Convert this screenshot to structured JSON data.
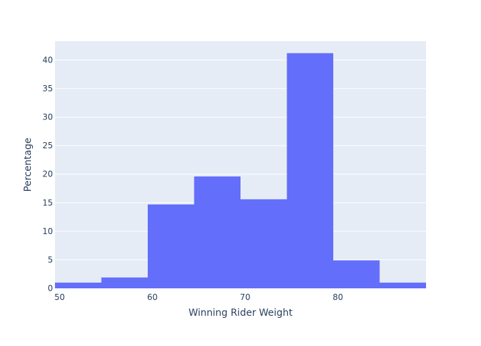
{
  "chart_data": {
    "type": "bar",
    "subtype": "histogram",
    "title": "",
    "xlabel": "Winning Rider Weight",
    "ylabel": "Percentage",
    "bin_edges": [
      49.5,
      54.5,
      59.5,
      64.5,
      69.5,
      74.5,
      79.5,
      84.5,
      89.5
    ],
    "values": [
      1.0,
      1.9,
      14.7,
      19.6,
      15.6,
      41.2,
      4.9,
      1.0
    ],
    "xlim": [
      49.5,
      89.5
    ],
    "ylim": [
      0,
      43.3
    ],
    "xticks": [
      50,
      60,
      70,
      80
    ],
    "yticks": [
      0,
      5,
      10,
      15,
      20,
      25,
      30,
      35,
      40
    ],
    "grid": "horizontal",
    "legend": "none",
    "colors": {
      "bar": "#636efa",
      "plot_background": "#e5ecf6",
      "grid": "#ffffff",
      "text": "#2a3f5f"
    }
  }
}
